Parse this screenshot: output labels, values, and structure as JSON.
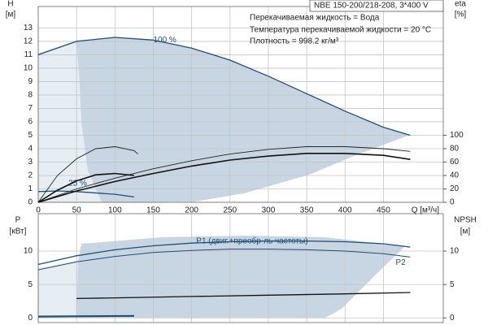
{
  "chart_data": [
    {
      "type": "line",
      "title": "NBE 150-200/218-208, 3*400 V",
      "annotations": [
        "Перекачиваемая жидкость = Вода",
        "Температура перекачиваемой жидкости = 20 °C",
        "Плотность = 998.2 кг/м³"
      ],
      "ylabel": [
        "H",
        "[м]"
      ],
      "y2label": [
        "eta",
        "[%]"
      ],
      "xlabel": "Q [м³/ч]",
      "xlim": [
        0,
        528
      ],
      "ylim": [
        0,
        14.6
      ],
      "y2lim": [
        0,
        292
      ],
      "xticks": [
        0,
        50,
        100,
        150,
        200,
        250,
        300,
        350,
        400,
        450
      ],
      "yticks": [
        0,
        1,
        2,
        3,
        4,
        5,
        6,
        7,
        8,
        9,
        10,
        11,
        12,
        13
      ],
      "y2ticks": [
        0,
        20,
        40,
        60,
        80,
        100
      ],
      "grid": true,
      "series": [
        {
          "name": "100 %",
          "color": "#1f4e79",
          "line_width": 1.3,
          "x": [
            0,
            50,
            100,
            150,
            200,
            250,
            300,
            350,
            400,
            450,
            485
          ],
          "values": [
            11.0,
            12.0,
            12.3,
            12.1,
            11.5,
            10.6,
            9.4,
            8.1,
            6.8,
            5.6,
            5.0
          ]
        },
        {
          "name": "25 %",
          "color": "#1f4e79",
          "line_width": 1.3,
          "x": [
            0,
            25,
            50,
            100,
            125
          ],
          "values": [
            0.8,
            0.85,
            0.8,
            0.6,
            0.4
          ]
        },
        {
          "axis": "y2",
          "color": "#222",
          "line_width": 0.9,
          "x": [
            0,
            50,
            100,
            150,
            200,
            250,
            300,
            350,
            400,
            450,
            485
          ],
          "values": [
            0,
            20,
            36,
            50,
            62,
            72,
            79,
            83,
            83,
            80,
            76
          ]
        },
        {
          "axis": "y2",
          "color": "#111",
          "line_width": 1.6,
          "x": [
            0,
            50,
            100,
            150,
            200,
            250,
            300,
            350,
            400,
            450,
            485
          ],
          "values": [
            0,
            17,
            31,
            43,
            54,
            63,
            69,
            73,
            73,
            70,
            64
          ]
        },
        {
          "axis": "y2",
          "color": "#222",
          "line_width": 0.9,
          "x": [
            0,
            25,
            50,
            75,
            100,
            125,
            130
          ],
          "values": [
            0,
            40,
            65,
            80,
            83,
            77,
            72
          ]
        },
        {
          "axis": "y2",
          "color": "#111",
          "line_width": 1.6,
          "x": [
            0,
            25,
            50,
            75,
            100,
            125
          ],
          "values": [
            0,
            18,
            32,
            41,
            43,
            40
          ]
        }
      ]
    },
    {
      "type": "line",
      "ylabel": [
        "P",
        "[кВт]"
      ],
      "y2label": [
        "NPSH",
        "[м]"
      ],
      "xlim": [
        0,
        528
      ],
      "ylim": [
        -0.7,
        15.6
      ],
      "y2lim": [
        -0.7,
        15.6
      ],
      "xticks": [
        0,
        50,
        100,
        150,
        200,
        250,
        300,
        350,
        400,
        450
      ],
      "yticks": [
        0,
        5,
        10
      ],
      "y2ticks": [
        0,
        5,
        10
      ],
      "grid": true,
      "series": [
        {
          "name": "P1 (двиг.+преобр-ль частоты)",
          "color": "#1f4e79",
          "line_width": 1.3,
          "x": [
            0,
            50,
            100,
            150,
            200,
            250,
            300,
            350,
            400,
            450,
            485
          ],
          "values": [
            8.0,
            9.3,
            10.2,
            10.8,
            11.2,
            11.4,
            11.5,
            11.5,
            11.4,
            11.1,
            10.6
          ]
        },
        {
          "name": "P2",
          "color": "#1f4e79",
          "line_width": 1.0,
          "x": [
            0,
            50,
            100,
            150,
            200,
            250,
            300,
            350,
            400,
            450,
            485
          ],
          "values": [
            7.2,
            8.4,
            9.2,
            9.8,
            10.1,
            10.3,
            10.3,
            10.2,
            10.0,
            9.6,
            9.1
          ]
        },
        {
          "axis": "y2",
          "color": "#111",
          "line_width": 1.3,
          "x": [
            50,
            100,
            200,
            300,
            400,
            485
          ],
          "values": [
            2.9,
            3.0,
            3.2,
            3.4,
            3.6,
            3.8
          ]
        },
        {
          "color": "#1f4e79",
          "line_width": 2.2,
          "x": [
            0,
            60,
            125
          ],
          "values": [
            0.2,
            0.25,
            0.3
          ]
        }
      ]
    }
  ]
}
